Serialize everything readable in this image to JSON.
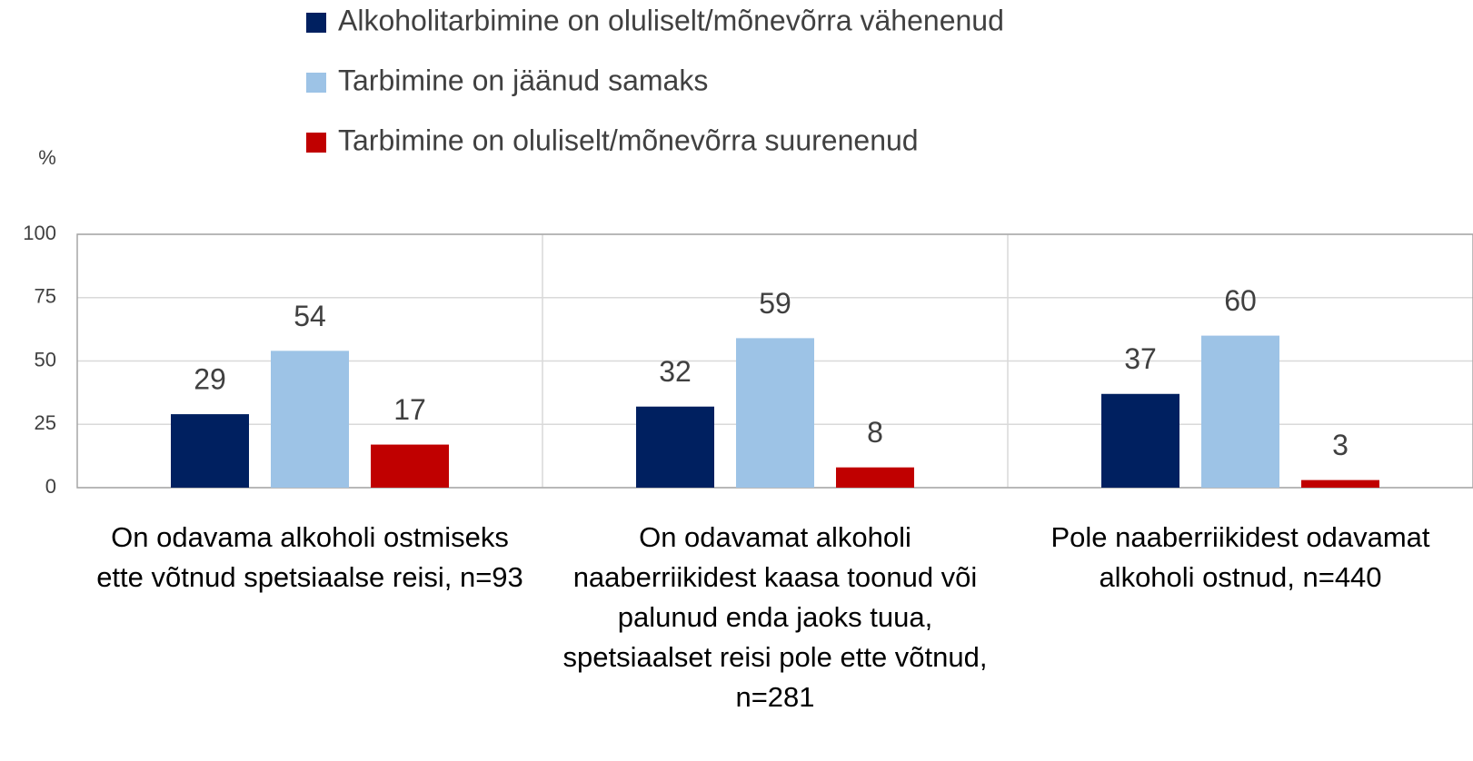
{
  "chart_data": {
    "type": "bar",
    "ylabel": "%",
    "categories": [
      "On odavama alkoholi ostmiseks ette võtnud spetsiaalse reisi, n=93",
      "On odavamat alkoholi naaberriikidest kaasa toonud või palunud enda jaoks tuua, spetsiaalset reisi pole ette võtnud, n=281",
      "Pole naaberriikidest odavamat alkoholi ostnud, n=440"
    ],
    "series": [
      {
        "name": "Alkoholitarbimine on oluliselt/mõnevõrra vähenenud",
        "color": "#002060",
        "values": [
          29,
          32,
          37
        ]
      },
      {
        "name": "Tarbimine on jäänud samaks",
        "color": "#9dc3e6",
        "values": [
          54,
          59,
          60
        ]
      },
      {
        "name": "Tarbimine on oluliselt/mõnevõrra suurenenud",
        "color": "#c00000",
        "values": [
          17,
          8,
          3
        ]
      }
    ],
    "ylim": [
      0,
      100
    ],
    "yticks": [
      0,
      25,
      50,
      75,
      100
    ],
    "grid": true,
    "legend": "top"
  }
}
